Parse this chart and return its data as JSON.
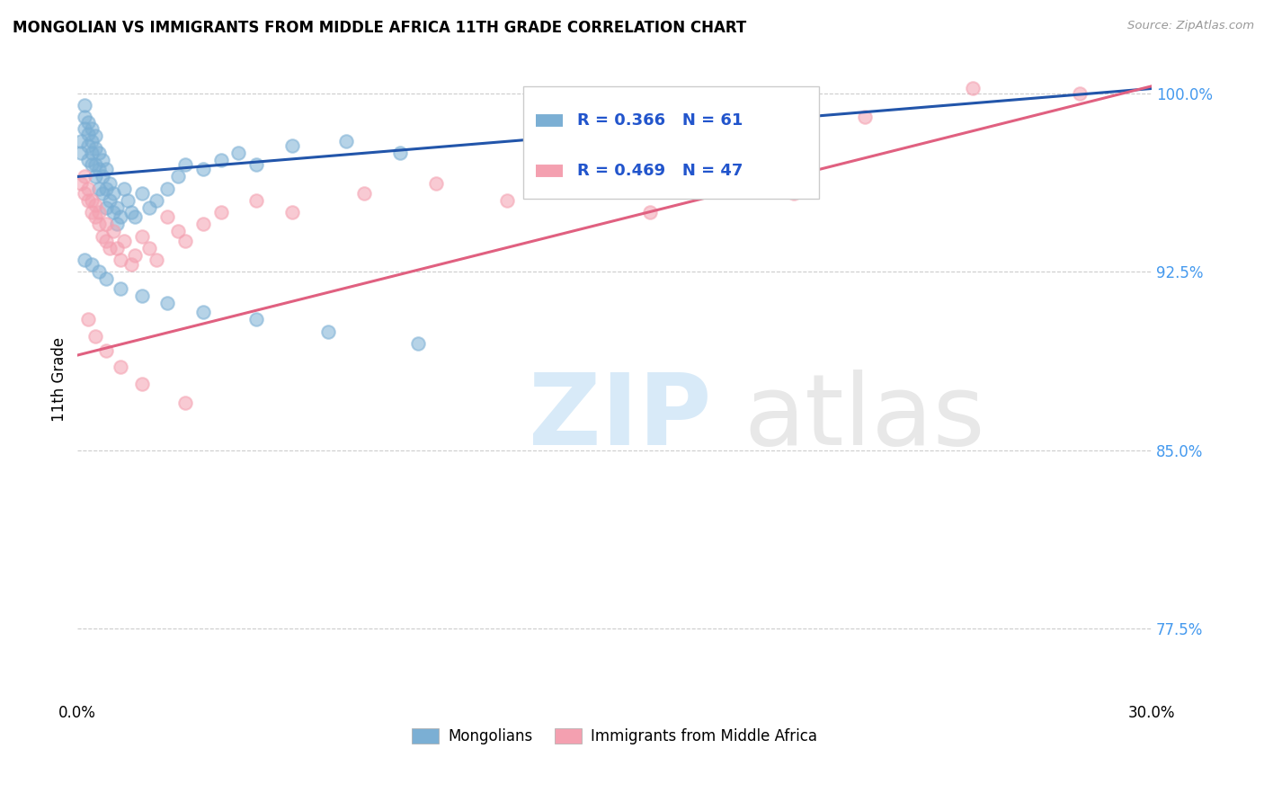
{
  "title": "MONGOLIAN VS IMMIGRANTS FROM MIDDLE AFRICA 11TH GRADE CORRELATION CHART",
  "source": "Source: ZipAtlas.com",
  "ylabel": "11th Grade",
  "xlim": [
    0.0,
    0.3
  ],
  "ylim": [
    0.745,
    1.015
  ],
  "yticks": [
    0.775,
    0.85,
    0.925,
    1.0
  ],
  "ytick_labels": [
    "77.5%",
    "85.0%",
    "92.5%",
    "100.0%"
  ],
  "xtick_positions": [
    0.0,
    0.05,
    0.1,
    0.15,
    0.2,
    0.25,
    0.3
  ],
  "xtick_labels": [
    "0.0%",
    "",
    "",
    "",
    "",
    "",
    "30.0%"
  ],
  "blue_color": "#7bafd4",
  "pink_color": "#f4a0b0",
  "blue_line_color": "#2255aa",
  "pink_line_color": "#e06080",
  "mongolian_label": "Mongolians",
  "immigrants_label": "Immigrants from Middle Africa",
  "blue_trend_x": [
    0.0,
    0.3
  ],
  "blue_trend_y": [
    0.965,
    1.002
  ],
  "pink_trend_x": [
    0.0,
    0.3
  ],
  "pink_trend_y": [
    0.89,
    1.003
  ],
  "blue_x": [
    0.001,
    0.001,
    0.002,
    0.002,
    0.002,
    0.003,
    0.003,
    0.003,
    0.003,
    0.004,
    0.004,
    0.004,
    0.004,
    0.005,
    0.005,
    0.005,
    0.005,
    0.006,
    0.006,
    0.006,
    0.007,
    0.007,
    0.007,
    0.008,
    0.008,
    0.008,
    0.009,
    0.009,
    0.01,
    0.01,
    0.011,
    0.011,
    0.012,
    0.013,
    0.014,
    0.015,
    0.016,
    0.018,
    0.02,
    0.022,
    0.025,
    0.028,
    0.03,
    0.035,
    0.04,
    0.045,
    0.05,
    0.06,
    0.075,
    0.09,
    0.002,
    0.004,
    0.006,
    0.008,
    0.012,
    0.018,
    0.025,
    0.035,
    0.05,
    0.07,
    0.095
  ],
  "blue_y": [
    0.98,
    0.975,
    0.995,
    0.99,
    0.985,
    0.988,
    0.983,
    0.978,
    0.972,
    0.985,
    0.98,
    0.975,
    0.97,
    0.982,
    0.977,
    0.97,
    0.965,
    0.975,
    0.968,
    0.96,
    0.972,
    0.965,
    0.958,
    0.968,
    0.96,
    0.952,
    0.962,
    0.955,
    0.958,
    0.95,
    0.952,
    0.945,
    0.948,
    0.96,
    0.955,
    0.95,
    0.948,
    0.958,
    0.952,
    0.955,
    0.96,
    0.965,
    0.97,
    0.968,
    0.972,
    0.975,
    0.97,
    0.978,
    0.98,
    0.975,
    0.93,
    0.928,
    0.925,
    0.922,
    0.918,
    0.915,
    0.912,
    0.908,
    0.905,
    0.9,
    0.895
  ],
  "pink_x": [
    0.001,
    0.002,
    0.002,
    0.003,
    0.003,
    0.004,
    0.004,
    0.005,
    0.005,
    0.006,
    0.006,
    0.007,
    0.008,
    0.008,
    0.009,
    0.01,
    0.011,
    0.012,
    0.013,
    0.015,
    0.016,
    0.018,
    0.02,
    0.022,
    0.025,
    0.028,
    0.03,
    0.035,
    0.04,
    0.05,
    0.06,
    0.08,
    0.1,
    0.12,
    0.14,
    0.16,
    0.18,
    0.2,
    0.22,
    0.25,
    0.003,
    0.005,
    0.008,
    0.012,
    0.018,
    0.03,
    0.28
  ],
  "pink_y": [
    0.962,
    0.958,
    0.965,
    0.955,
    0.96,
    0.95,
    0.955,
    0.948,
    0.953,
    0.945,
    0.95,
    0.94,
    0.945,
    0.938,
    0.935,
    0.942,
    0.935,
    0.93,
    0.938,
    0.928,
    0.932,
    0.94,
    0.935,
    0.93,
    0.948,
    0.942,
    0.938,
    0.945,
    0.95,
    0.955,
    0.95,
    0.958,
    0.962,
    0.955,
    0.96,
    0.95,
    0.968,
    0.958,
    0.99,
    1.002,
    0.905,
    0.898,
    0.892,
    0.885,
    0.878,
    0.87,
    1.0
  ]
}
